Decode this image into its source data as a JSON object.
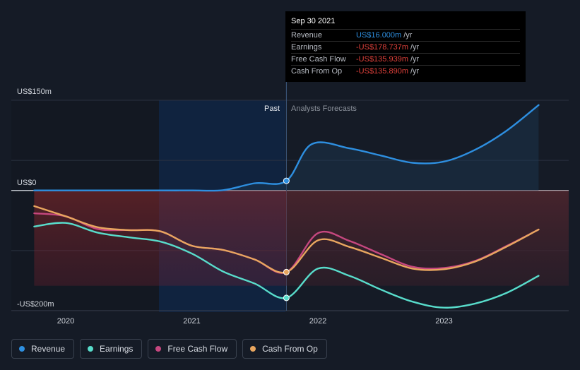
{
  "chart_data": {
    "type": "line",
    "y_unit": "US$ millions",
    "ylim": [
      -200,
      150
    ],
    "y_labels": [
      "US$150m",
      "US$0",
      "-US$200m"
    ],
    "x_labels": [
      "2020",
      "2021",
      "2022",
      "2023"
    ],
    "past_label": "Past",
    "forecast_label": "Analysts Forecasts",
    "series": [
      {
        "name": "Revenue",
        "color": "#2e8fe0",
        "points": [
          [
            2019.75,
            0
          ],
          [
            2020.0,
            0
          ],
          [
            2020.5,
            0
          ],
          [
            2020.75,
            0
          ],
          [
            2021.0,
            0
          ],
          [
            2021.25,
            0.5
          ],
          [
            2021.5,
            12
          ],
          [
            2021.75,
            16
          ],
          [
            2021.95,
            77
          ],
          [
            2022.25,
            70
          ],
          [
            2022.5,
            58
          ],
          [
            2022.75,
            46
          ],
          [
            2023.0,
            48
          ],
          [
            2023.25,
            68
          ],
          [
            2023.5,
            100
          ],
          [
            2023.75,
            142
          ]
        ]
      },
      {
        "name": "Earnings",
        "color": "#58dccb",
        "points": [
          [
            2019.75,
            -60
          ],
          [
            2020.0,
            -54
          ],
          [
            2020.25,
            -70
          ],
          [
            2020.5,
            -78
          ],
          [
            2020.75,
            -85
          ],
          [
            2021.0,
            -105
          ],
          [
            2021.25,
            -135
          ],
          [
            2021.5,
            -155
          ],
          [
            2021.75,
            -178.737
          ],
          [
            2022.0,
            -130
          ],
          [
            2022.25,
            -142
          ],
          [
            2022.5,
            -165
          ],
          [
            2022.75,
            -185
          ],
          [
            2023.0,
            -195
          ],
          [
            2023.25,
            -188
          ],
          [
            2023.5,
            -170
          ],
          [
            2023.75,
            -142
          ]
        ]
      },
      {
        "name": "Free Cash Flow",
        "color": "#c6477f",
        "points": [
          [
            2019.75,
            -38
          ],
          [
            2020.0,
            -43
          ],
          [
            2020.25,
            -64
          ],
          [
            2020.5,
            -66
          ],
          [
            2020.75,
            -68
          ],
          [
            2021.0,
            -92
          ],
          [
            2021.25,
            -99
          ],
          [
            2021.5,
            -115
          ],
          [
            2021.75,
            -135.939
          ],
          [
            2022.0,
            -71
          ],
          [
            2022.25,
            -84
          ],
          [
            2022.5,
            -106
          ],
          [
            2022.75,
            -127
          ],
          [
            2023.0,
            -129
          ],
          [
            2023.25,
            -117
          ],
          [
            2023.5,
            -92
          ],
          [
            2023.75,
            -65
          ]
        ]
      },
      {
        "name": "Cash From Op",
        "color": "#e8a65f",
        "points": [
          [
            2019.75,
            -26
          ],
          [
            2020.0,
            -43
          ],
          [
            2020.25,
            -61
          ],
          [
            2020.5,
            -66
          ],
          [
            2020.75,
            -68
          ],
          [
            2021.0,
            -92
          ],
          [
            2021.25,
            -99
          ],
          [
            2021.5,
            -115
          ],
          [
            2021.75,
            -135.89
          ],
          [
            2022.0,
            -83
          ],
          [
            2022.25,
            -94
          ],
          [
            2022.5,
            -112
          ],
          [
            2022.75,
            -130
          ],
          [
            2023.0,
            -131
          ],
          [
            2023.25,
            -118
          ],
          [
            2023.5,
            -93
          ],
          [
            2023.75,
            -65
          ]
        ]
      }
    ]
  },
  "tooltip": {
    "date": "Sep 30 2021",
    "rows": [
      {
        "label": "Revenue",
        "value": "US$16.000m",
        "unit": "/yr",
        "color": "#2e8fe0"
      },
      {
        "label": "Earnings",
        "value": "-US$178.737m",
        "unit": "/yr",
        "color": "#e0413b"
      },
      {
        "label": "Free Cash Flow",
        "value": "-US$135.939m",
        "unit": "/yr",
        "color": "#e0413b"
      },
      {
        "label": "Cash From Op",
        "value": "-US$135.890m",
        "unit": "/yr",
        "color": "#e0413b"
      }
    ]
  },
  "legend": [
    {
      "label": "Revenue",
      "color": "#2e8fe0"
    },
    {
      "label": "Earnings",
      "color": "#58dccb"
    },
    {
      "label": "Free Cash Flow",
      "color": "#c6477f"
    },
    {
      "label": "Cash From Op",
      "color": "#e8a65f"
    }
  ]
}
